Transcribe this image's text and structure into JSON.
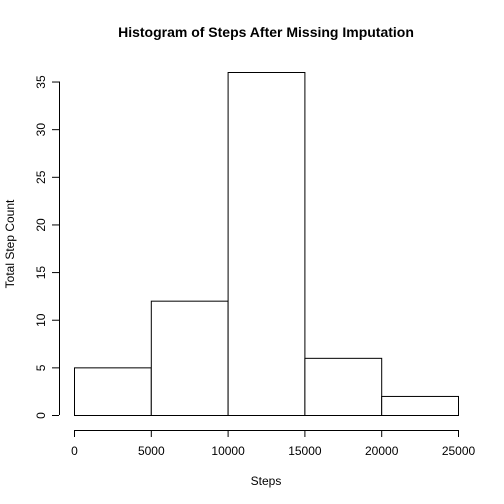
{
  "chart_data": {
    "type": "bar",
    "title": "Histogram of Steps After Missing Imputation",
    "xlabel": "Steps",
    "ylabel": "Total Step Count",
    "bins": [
      {
        "from": 0,
        "to": 5000,
        "count": 5
      },
      {
        "from": 5000,
        "to": 10000,
        "count": 12
      },
      {
        "from": 10000,
        "to": 15000,
        "count": 36
      },
      {
        "from": 15000,
        "to": 20000,
        "count": 6
      },
      {
        "from": 20000,
        "to": 25000,
        "count": 2
      }
    ],
    "xlim": [
      0,
      25000
    ],
    "ylim": [
      0,
      36
    ],
    "x_ticks": [
      0,
      5000,
      10000,
      15000,
      20000,
      25000
    ],
    "y_ticks": [
      0,
      5,
      10,
      15,
      20,
      25,
      30,
      35
    ],
    "grid": false,
    "legend": "none"
  }
}
